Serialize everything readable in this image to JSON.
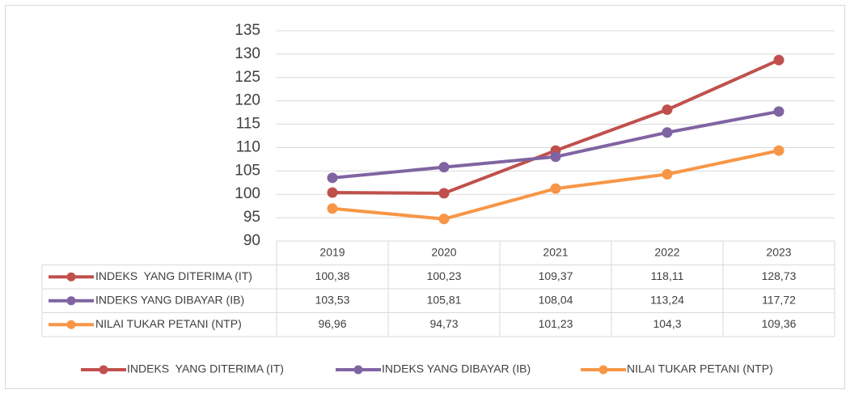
{
  "chart_data": {
    "type": "line",
    "categories": [
      "2019",
      "2020",
      "2021",
      "2022",
      "2023"
    ],
    "series": [
      {
        "name": "INDEKS  YANG DITERIMA (IT)",
        "color": "#c0504d",
        "values": [
          100.38,
          100.23,
          109.37,
          118.11,
          128.73
        ],
        "value_labels": [
          "100,38",
          "100,23",
          "109,37",
          "118,11",
          "128,73"
        ]
      },
      {
        "name": "INDEKS YANG DIBAYAR (IB)",
        "color": "#8064a2",
        "values": [
          103.53,
          105.81,
          108.04,
          113.24,
          117.72
        ],
        "value_labels": [
          "103,53",
          "105,81",
          "108,04",
          "113,24",
          "117,72"
        ]
      },
      {
        "name": "NILAI TUKAR PETANI (NTP)",
        "color": "#f79646",
        "values": [
          96.96,
          94.73,
          101.23,
          104.3,
          109.36
        ],
        "value_labels": [
          "96,96",
          "94,73",
          "101,23",
          "104,3",
          "109,36"
        ]
      }
    ],
    "ylim": [
      90,
      135
    ],
    "yticks": [
      90,
      95,
      100,
      105,
      110,
      115,
      120,
      125,
      130,
      135
    ],
    "grid": true,
    "legend": "bottom"
  }
}
